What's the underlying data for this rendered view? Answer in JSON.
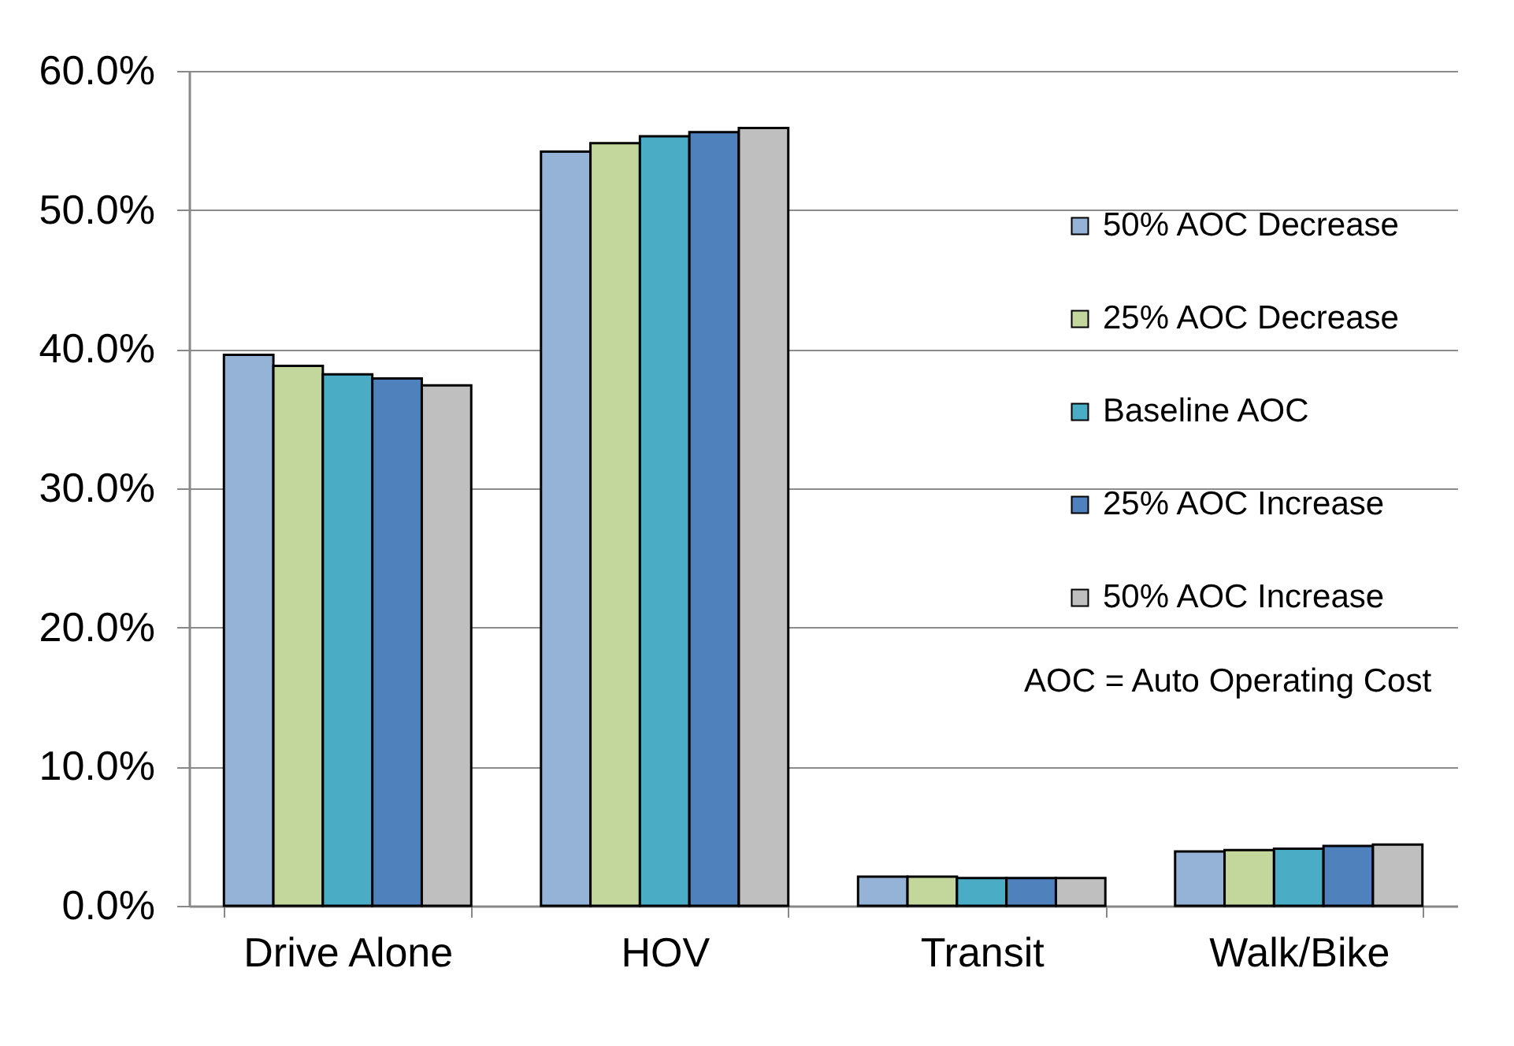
{
  "chart_data": {
    "type": "bar",
    "categories": [
      "Drive Alone",
      "HOV",
      "Transit",
      "Walk/Bike"
    ],
    "series": [
      {
        "name": "50% AOC Decrease",
        "color": "#95b3d7",
        "values": [
          39.6,
          54.2,
          2.1,
          3.9
        ]
      },
      {
        "name": "25% AOC Decrease",
        "color": "#c3d69b",
        "values": [
          38.8,
          54.8,
          2.1,
          4.0
        ]
      },
      {
        "name": "Baseline AOC",
        "color": "#4bacc6",
        "values": [
          38.2,
          55.3,
          2.0,
          4.1
        ]
      },
      {
        "name": "25% AOC Increase",
        "color": "#4f81bd",
        "values": [
          37.9,
          55.6,
          2.0,
          4.3
        ]
      },
      {
        "name": "50% AOC Increase",
        "color": "#bfbfbf",
        "values": [
          37.4,
          55.9,
          2.0,
          4.4
        ]
      }
    ],
    "ylim": [
      0,
      60
    ],
    "yticks": [
      {
        "value": 0,
        "label": "0.0%"
      },
      {
        "value": 10,
        "label": "10.0%"
      },
      {
        "value": 20,
        "label": "20.0%"
      },
      {
        "value": 30,
        "label": "30.0%"
      },
      {
        "value": 40,
        "label": "40.0%"
      },
      {
        "value": 50,
        "label": "50.0%"
      },
      {
        "value": 60,
        "label": "60.0%"
      }
    ],
    "grid": "y",
    "legend": "right",
    "annotations": [
      "AOC = Auto Operating Cost"
    ]
  }
}
